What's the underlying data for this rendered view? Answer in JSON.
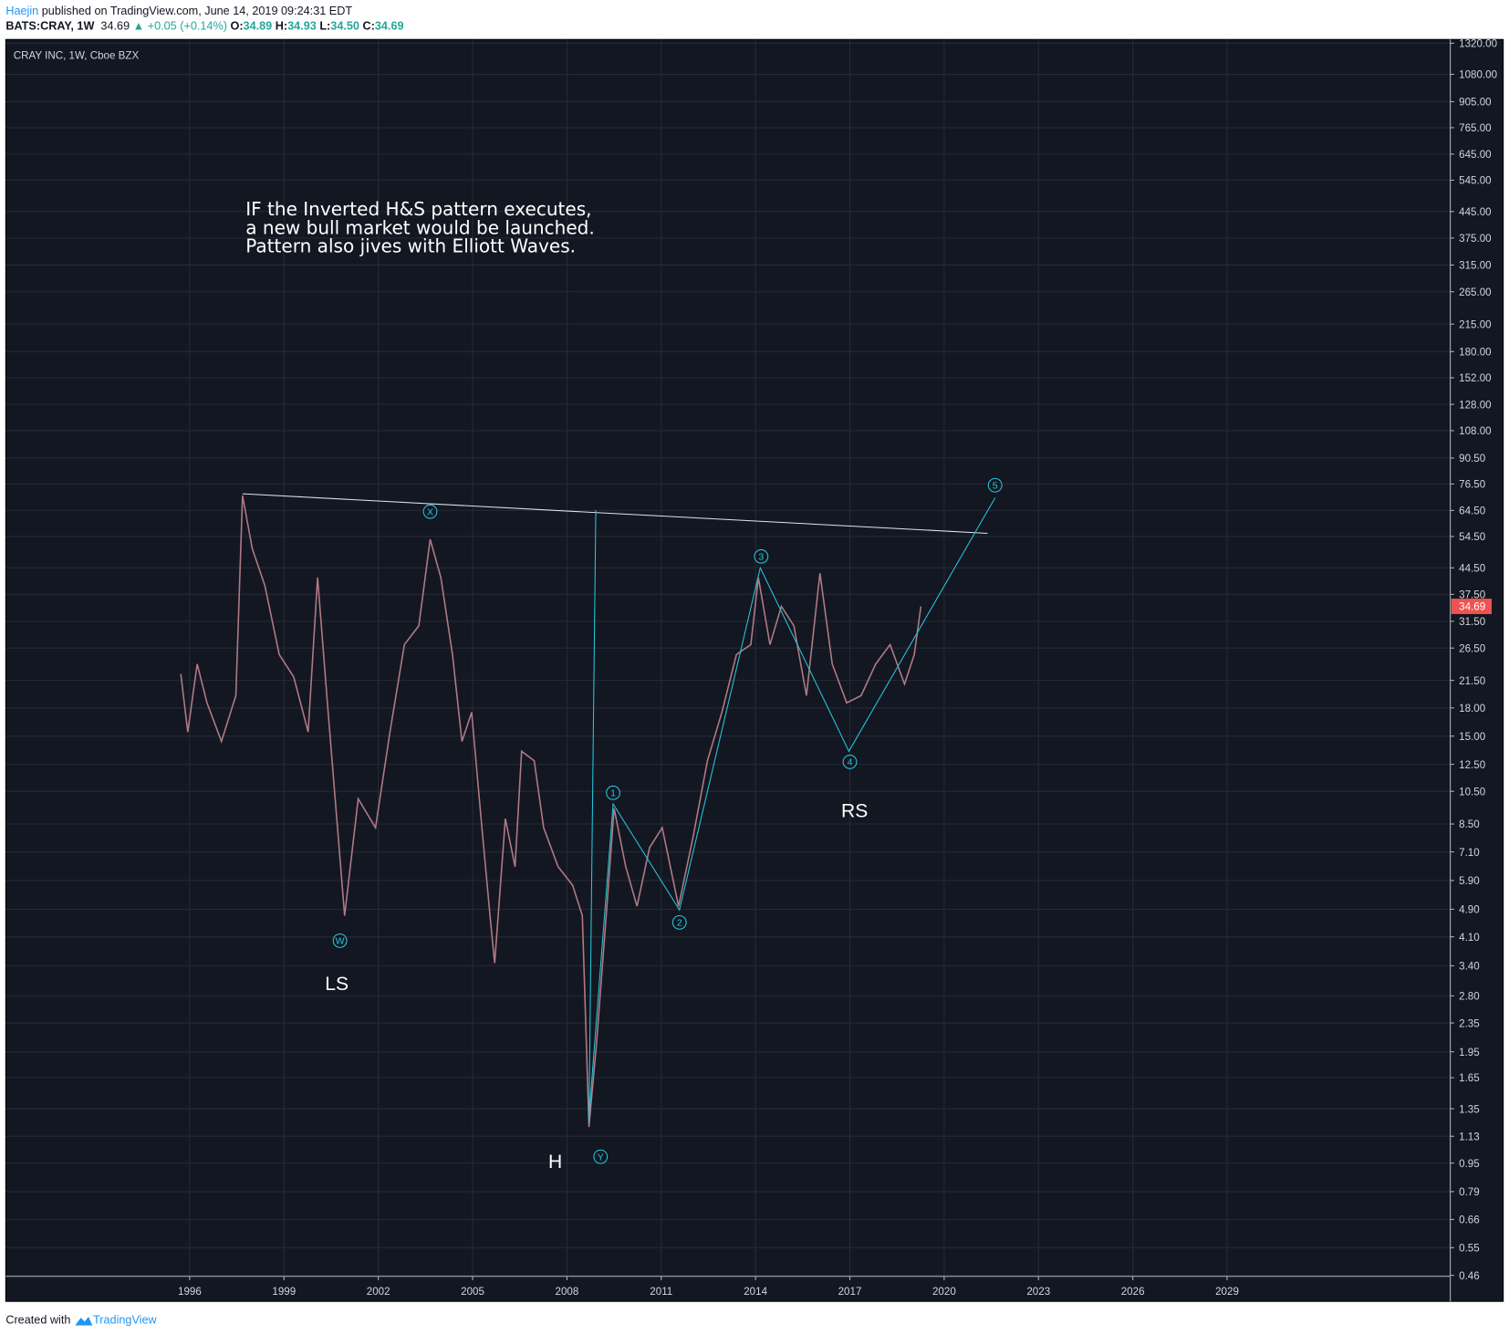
{
  "header": {
    "author": "Haejin",
    "published": "published on TradingView.com, June 14, 2019 09:24:31 EDT",
    "symbol": "BATS:CRAY, 1W",
    "last": "34.69",
    "change": "▲ +0.05 (+0.14%)",
    "ohlc": [
      {
        "key": "O:",
        "value": "34.89"
      },
      {
        "key": "H:",
        "value": "34.93"
      },
      {
        "key": "L:",
        "value": "34.50"
      },
      {
        "key": "C:",
        "value": "34.69"
      }
    ]
  },
  "chart_data": {
    "type": "line",
    "title": "CRAY INC, 1W, Cboe BZX",
    "x": [
      1995.72,
      1995.94,
      1996.24,
      1996.55,
      1997.01,
      1997.47,
      1997.68,
      1997.99,
      1998.39,
      1998.85,
      1999.31,
      1999.77,
      2000.07,
      2000.38,
      2000.93,
      2001.36,
      2001.91,
      2002.37,
      2002.83,
      2003.29,
      2003.65,
      2003.99,
      2004.36,
      2004.66,
      2004.97,
      2005.27,
      2005.58,
      2005.7,
      2006.04,
      2006.35,
      2006.56,
      2006.96,
      2007.26,
      2007.72,
      2008.18,
      2008.49,
      2008.7,
      2008.95,
      2009.25,
      2009.5,
      2009.87,
      2010.23,
      2010.63,
      2011.03,
      2011.55,
      2012.01,
      2012.47,
      2012.93,
      2013.39,
      2013.85,
      2014.09,
      2014.46,
      2014.82,
      2015.22,
      2015.62,
      2016.05,
      2016.44,
      2016.9,
      2017.36,
      2017.82,
      2018.28,
      2018.74,
      2019.05,
      2019.26
    ],
    "values": [
      22.4,
      15.4,
      23.9,
      18.6,
      14.5,
      19.5,
      71,
      50.4,
      39.7,
      25.4,
      22,
      15.4,
      41.8,
      18.6,
      4.7,
      10,
      8.3,
      15.4,
      27.1,
      30.6,
      53.5,
      41.8,
      25.4,
      14.5,
      17.5,
      8.8,
      4.45,
      3.46,
      8.8,
      6.45,
      13.6,
      12.8,
      8.3,
      6.45,
      5.72,
      4.7,
      1.2,
      2.1,
      4.7,
      9.4,
      6.45,
      5.0,
      7.3,
      8.3,
      5.0,
      7.8,
      12.8,
      17.5,
      25.4,
      27.1,
      41.8,
      27.1,
      34.7,
      30.6,
      19.5,
      43,
      23.9,
      18.6,
      19.5,
      23.9,
      27.1,
      21,
      25.4,
      34.69
    ],
    "color": "#b07a84",
    "log_scale": true,
    "grid": true,
    "xlim": [
      1990.15,
      2036.1
    ],
    "ylim": [
      0.457,
      1353
    ],
    "xticks": [
      1996,
      1999,
      2002,
      2005,
      2008,
      2011,
      2014,
      2017,
      2020,
      2023,
      2026,
      2029
    ],
    "yticks": [
      {
        "value": 1320,
        "label": "1320.00"
      },
      {
        "value": 1080,
        "label": "1080.00"
      },
      {
        "value": 905,
        "label": "905.00"
      },
      {
        "value": 765,
        "label": "765.00"
      },
      {
        "value": 645,
        "label": "645.00"
      },
      {
        "value": 545,
        "label": "545.00"
      },
      {
        "value": 445,
        "label": "445.00"
      },
      {
        "value": 375,
        "label": "375.00"
      },
      {
        "value": 315,
        "label": "315.00"
      },
      {
        "value": 265,
        "label": "265.00"
      },
      {
        "value": 215,
        "label": "215.00"
      },
      {
        "value": 180,
        "label": "180.00"
      },
      {
        "value": 152,
        "label": "152.00"
      },
      {
        "value": 128,
        "label": "128.00"
      },
      {
        "value": 108,
        "label": "108.00"
      },
      {
        "value": 90.5,
        "label": "90.50"
      },
      {
        "value": 76.5,
        "label": "76.50"
      },
      {
        "value": 64.5,
        "label": "64.50"
      },
      {
        "value": 54.5,
        "label": "54.50"
      },
      {
        "value": 44.5,
        "label": "44.50"
      },
      {
        "value": 37.5,
        "label": "37.50"
      },
      {
        "value": 31.5,
        "label": "31.50"
      },
      {
        "value": 26.5,
        "label": "26.50"
      },
      {
        "value": 21.5,
        "label": "21.50"
      },
      {
        "value": 18,
        "label": "18.00"
      },
      {
        "value": 15,
        "label": "15.00"
      },
      {
        "value": 12.5,
        "label": "12.50"
      },
      {
        "value": 10.5,
        "label": "10.50"
      },
      {
        "value": 8.5,
        "label": "8.50"
      },
      {
        "value": 7.1,
        "label": "7.10"
      },
      {
        "value": 5.9,
        "label": "5.90"
      },
      {
        "value": 4.9,
        "label": "4.90"
      },
      {
        "value": 4.1,
        "label": "4.10"
      },
      {
        "value": 3.4,
        "label": "3.40"
      },
      {
        "value": 2.8,
        "label": "2.80"
      },
      {
        "value": 2.35,
        "label": "2.35"
      },
      {
        "value": 1.95,
        "label": "1.95"
      },
      {
        "value": 1.65,
        "label": "1.65"
      },
      {
        "value": 1.35,
        "label": "1.35"
      },
      {
        "value": 1.13,
        "label": "1.13"
      },
      {
        "value": 0.95,
        "label": "0.95"
      },
      {
        "value": 0.79,
        "label": "0.79"
      },
      {
        "value": 0.66,
        "label": "0.66"
      },
      {
        "value": 0.55,
        "label": "0.55"
      },
      {
        "value": 0.46,
        "label": "0.46"
      }
    ],
    "last_price": {
      "value": 34.69,
      "label": "34.69",
      "color": "#ef5350"
    },
    "annotation": {
      "lines": [
        "IF the Inverted H&S pattern executes,",
        "a new bull market would be launched.",
        "Pattern also jives with Elliott Waves."
      ],
      "x": 1997.78,
      "y": 473
    },
    "lines": [
      {
        "color": "#e0e3eb",
        "x": [
          1997.68,
          2021.38
        ],
        "y": [
          71.8,
          55.6
        ]
      },
      {
        "color": "#26c6da",
        "x": [
          2008.7,
          2008.92
        ],
        "y": [
          1.24,
          64.6
        ]
      },
      {
        "color": "#26c6da",
        "x": [
          2008.7,
          2009.47,
          2011.58,
          2014.15,
          2016.97,
          2021.62
        ],
        "y": [
          1.28,
          9.68,
          4.88,
          44.5,
          13.6,
          70
        ]
      }
    ],
    "wave_color": "#26c6da",
    "wave_labels": [
      {
        "text": "W",
        "x": 2000.78,
        "y": 4.0
      },
      {
        "text": "X",
        "x": 2003.65,
        "y": 64
      },
      {
        "text": "Y",
        "x": 2009.07,
        "y": 0.99
      },
      {
        "text": "1",
        "x": 2009.47,
        "y": 10.4
      },
      {
        "text": "2",
        "x": 2011.58,
        "y": 4.5
      },
      {
        "text": "3",
        "x": 2014.18,
        "y": 47.9
      },
      {
        "text": "4",
        "x": 2017.0,
        "y": 12.7
      },
      {
        "text": "5",
        "x": 2021.62,
        "y": 75.9
      }
    ],
    "pattern_labels": [
      {
        "text": "LS",
        "x": 2000.68,
        "y": 3.04
      },
      {
        "text": "H",
        "x": 2007.63,
        "y": 0.96
      },
      {
        "text": "RS",
        "x": 2017.15,
        "y": 9.27
      }
    ]
  },
  "footer": {
    "created": "Created with",
    "brand": "TradingView"
  }
}
